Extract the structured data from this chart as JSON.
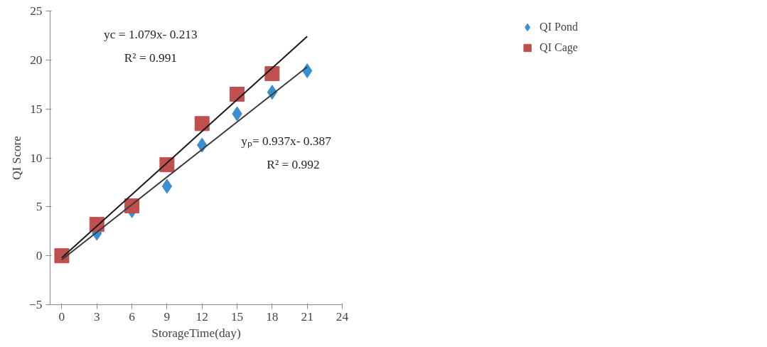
{
  "chart_data": {
    "type": "scatter",
    "xlabel": "StorageTime(day)",
    "ylabel": "QI Score",
    "series": [
      {
        "name": "QI Pond",
        "color": "#3a8fd0",
        "marker": "diamond",
        "x": [
          3,
          6,
          9,
          12,
          15,
          18,
          21
        ],
        "values": [
          2.3,
          4.6,
          7.1,
          11.3,
          14.5,
          16.7,
          18.9
        ]
      },
      {
        "name": "QI Cage",
        "color": "#c0504d",
        "marker": "square",
        "x": [
          0,
          3,
          6,
          9,
          12,
          15,
          18
        ],
        "values": [
          0,
          3.2,
          5.1,
          9.3,
          13.5,
          16.5,
          18.6
        ]
      },
      {
        "type": "line",
        "color": "#1a1a1a",
        "x": [
          0,
          21
        ],
        "values": [
          -0.2,
          22.4
        ]
      },
      {
        "type": "line",
        "color": "#3a3a3a",
        "x": [
          0,
          21
        ],
        "values": [
          -0.4,
          19.3
        ]
      }
    ],
    "annotations": [
      "yc = 1.079x- 0.213",
      "R² = 0.991",
      "yₚ= 0.937x- 0.387",
      "R² = 0.992"
    ],
    "xlim": [
      -1,
      24
    ],
    "xticks": [
      0,
      3,
      6,
      9,
      12,
      15,
      18,
      21,
      24
    ],
    "ylim": [
      -5,
      25
    ],
    "yticks": [
      -5,
      0,
      5,
      10,
      15,
      20,
      25
    ],
    "grid": false,
    "legend": "top right"
  }
}
